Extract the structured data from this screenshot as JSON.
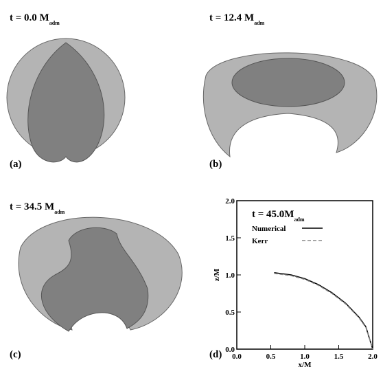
{
  "panels": [
    {
      "title": "t = 0.0 M",
      "title_sub": "adm",
      "label": "(a)"
    },
    {
      "title": "t = 12.4 M",
      "title_sub": "adm",
      "label": "(b)"
    },
    {
      "title": "t = 34.5 M",
      "title_sub": "adm",
      "label": "(c)"
    }
  ],
  "chart_data": {
    "type": "line",
    "label": "(d)",
    "title": "t = 45.0M",
    "title_sub": "adm",
    "x_label": "x/M",
    "y_label": "z/M",
    "xlim": [
      0,
      2
    ],
    "ylim": [
      0,
      2
    ],
    "xticks": [
      {
        "value": 0,
        "label": "0.0"
      },
      {
        "value": 0.5,
        "label": "0.5"
      },
      {
        "value": 1,
        "label": "1.0"
      },
      {
        "value": 1.5,
        "label": "1.5"
      },
      {
        "value": 2,
        "label": "2.0"
      }
    ],
    "yticks": [
      {
        "value": 0,
        "label": "0.0"
      },
      {
        "value": 0.5,
        "label": "0.5"
      },
      {
        "value": 1,
        "label": "1.0"
      },
      {
        "value": 1.5,
        "label": "1.5"
      },
      {
        "value": 2,
        "label": "2.0"
      }
    ],
    "series": [
      {
        "name": "Numerical",
        "color": "#000000",
        "style": "solid",
        "x": [
          0.55,
          0.8,
          1.0,
          1.2,
          1.4,
          1.6,
          1.8,
          1.9,
          2.0
        ],
        "values": [
          1.03,
          1.0,
          0.95,
          0.87,
          0.76,
          0.62,
          0.43,
          0.3,
          0.0
        ]
      },
      {
        "name": "Kerr",
        "color": "#888888",
        "style": "dashed",
        "x": [
          0.55,
          0.8,
          1.0,
          1.2,
          1.4,
          1.6,
          1.8,
          1.9,
          2.0
        ],
        "values": [
          1.02,
          0.99,
          0.94,
          0.86,
          0.75,
          0.61,
          0.42,
          0.29,
          0.0
        ]
      }
    ]
  }
}
